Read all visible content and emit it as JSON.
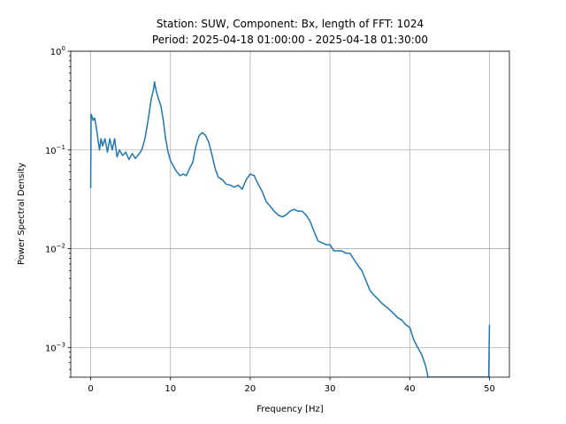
{
  "chart_data": {
    "type": "line",
    "title_line1": "Station: SUW, Component: Bx, length of FFT: 1024",
    "title_line2": "Period: 2025-04-18 01:00:00 - 2025-04-18 01:30:00",
    "xlabel": "Frequency [Hz]",
    "ylabel": "Power Spectral Density",
    "xlim": [
      -2.5,
      52.5
    ],
    "ylim": [
      0.0005,
      1
    ],
    "yscale": "log",
    "grid": true,
    "x_ticks": [
      {
        "value": 0,
        "label": "0"
      },
      {
        "value": 10,
        "label": "10"
      },
      {
        "value": 20,
        "label": "20"
      },
      {
        "value": 30,
        "label": "30"
      },
      {
        "value": 40,
        "label": "40"
      },
      {
        "value": 50,
        "label": "50"
      }
    ],
    "y_ticks": [
      {
        "value": 0.001,
        "base": "10",
        "exp": "−3"
      },
      {
        "value": 0.01,
        "base": "10",
        "exp": "−2"
      },
      {
        "value": 0.1,
        "base": "10",
        "exp": "−1"
      },
      {
        "value": 1,
        "base": "10",
        "exp": "0"
      }
    ],
    "series": [
      {
        "color": "#1f77b4",
        "points": [
          [
            0.0,
            0.041
          ],
          [
            0.05,
            0.23
          ],
          [
            0.15,
            0.22
          ],
          [
            0.3,
            0.2
          ],
          [
            0.5,
            0.21
          ],
          [
            0.7,
            0.17
          ],
          [
            0.9,
            0.13
          ],
          [
            1.1,
            0.1
          ],
          [
            1.3,
            0.13
          ],
          [
            1.5,
            0.11
          ],
          [
            1.8,
            0.13
          ],
          [
            2.1,
            0.095
          ],
          [
            2.4,
            0.13
          ],
          [
            2.7,
            0.1
          ],
          [
            3.0,
            0.13
          ],
          [
            3.3,
            0.085
          ],
          [
            3.6,
            0.1
          ],
          [
            4.0,
            0.088
          ],
          [
            4.4,
            0.095
          ],
          [
            4.8,
            0.08
          ],
          [
            5.2,
            0.092
          ],
          [
            5.6,
            0.082
          ],
          [
            6.0,
            0.09
          ],
          [
            6.4,
            0.1
          ],
          [
            6.8,
            0.13
          ],
          [
            7.2,
            0.2
          ],
          [
            7.6,
            0.33
          ],
          [
            7.9,
            0.42
          ],
          [
            8.0,
            0.49
          ],
          [
            8.2,
            0.4
          ],
          [
            8.5,
            0.33
          ],
          [
            8.8,
            0.28
          ],
          [
            9.1,
            0.2
          ],
          [
            9.4,
            0.13
          ],
          [
            9.7,
            0.095
          ],
          [
            10.0,
            0.078
          ],
          [
            10.4,
            0.068
          ],
          [
            10.8,
            0.06
          ],
          [
            11.2,
            0.055
          ],
          [
            11.6,
            0.057
          ],
          [
            12.0,
            0.055
          ],
          [
            12.4,
            0.065
          ],
          [
            12.8,
            0.075
          ],
          [
            13.2,
            0.11
          ],
          [
            13.6,
            0.14
          ],
          [
            14.0,
            0.15
          ],
          [
            14.4,
            0.14
          ],
          [
            14.8,
            0.12
          ],
          [
            15.2,
            0.09
          ],
          [
            15.6,
            0.065
          ],
          [
            16.0,
            0.053
          ],
          [
            16.5,
            0.05
          ],
          [
            17.0,
            0.045
          ],
          [
            17.5,
            0.044
          ],
          [
            18.0,
            0.042
          ],
          [
            18.5,
            0.044
          ],
          [
            19.0,
            0.04
          ],
          [
            19.5,
            0.05
          ],
          [
            20.0,
            0.057
          ],
          [
            20.5,
            0.055
          ],
          [
            21.0,
            0.045
          ],
          [
            21.5,
            0.038
          ],
          [
            22.0,
            0.03
          ],
          [
            22.5,
            0.027
          ],
          [
            23.0,
            0.024
          ],
          [
            23.5,
            0.022
          ],
          [
            24.0,
            0.021
          ],
          [
            24.5,
            0.022
          ],
          [
            25.0,
            0.024
          ],
          [
            25.5,
            0.025
          ],
          [
            26.0,
            0.024
          ],
          [
            26.5,
            0.024
          ],
          [
            27.0,
            0.022
          ],
          [
            27.5,
            0.019
          ],
          [
            28.0,
            0.015
          ],
          [
            28.5,
            0.012
          ],
          [
            29.0,
            0.0115
          ],
          [
            29.5,
            0.011
          ],
          [
            30.0,
            0.011
          ],
          [
            30.5,
            0.0095
          ],
          [
            31.0,
            0.0095
          ],
          [
            31.5,
            0.0095
          ],
          [
            32.0,
            0.009
          ],
          [
            32.5,
            0.009
          ],
          [
            33.0,
            0.0078
          ],
          [
            33.5,
            0.0068
          ],
          [
            34.0,
            0.006
          ],
          [
            34.5,
            0.0048
          ],
          [
            35.0,
            0.0038
          ],
          [
            35.5,
            0.0034
          ],
          [
            36.0,
            0.0031
          ],
          [
            36.5,
            0.0028
          ],
          [
            37.0,
            0.0026
          ],
          [
            37.5,
            0.0024
          ],
          [
            38.0,
            0.0022
          ],
          [
            38.5,
            0.002
          ],
          [
            39.0,
            0.0019
          ],
          [
            39.5,
            0.0017
          ],
          [
            40.0,
            0.0016
          ],
          [
            40.5,
            0.0012
          ],
          [
            41.0,
            0.001
          ],
          [
            41.5,
            0.00085
          ],
          [
            42.0,
            0.00065
          ],
          [
            42.3,
            0.0005
          ],
          [
            49.9,
            0.0005
          ],
          [
            49.95,
            0.0009
          ],
          [
            50.0,
            0.0017
          ]
        ]
      }
    ]
  }
}
